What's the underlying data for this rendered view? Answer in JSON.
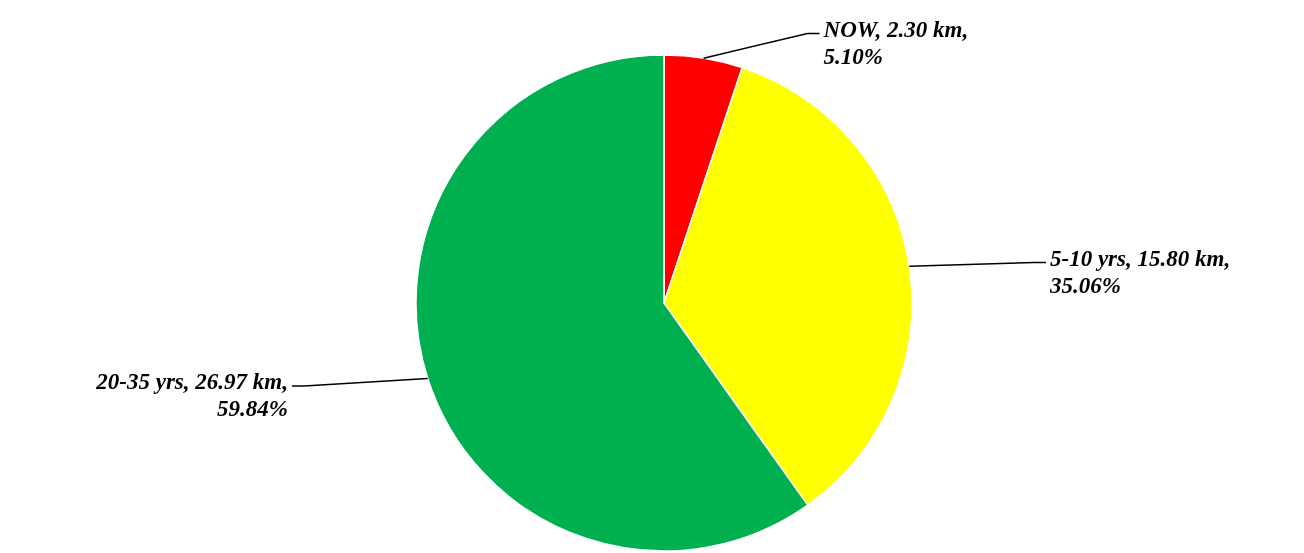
{
  "chart_data": {
    "type": "pie",
    "categories": [
      "NOW",
      "5-10 yrs",
      "20-35 yrs"
    ],
    "values": [
      2.3,
      15.8,
      26.97
    ],
    "colors": [
      "#ff0000",
      "#ffff00",
      "#00b050"
    ],
    "value_labels": [
      "2.30 km, 5.10%",
      "15.80 km, 35.06%",
      "26.97 km, 59.84%"
    ]
  }
}
